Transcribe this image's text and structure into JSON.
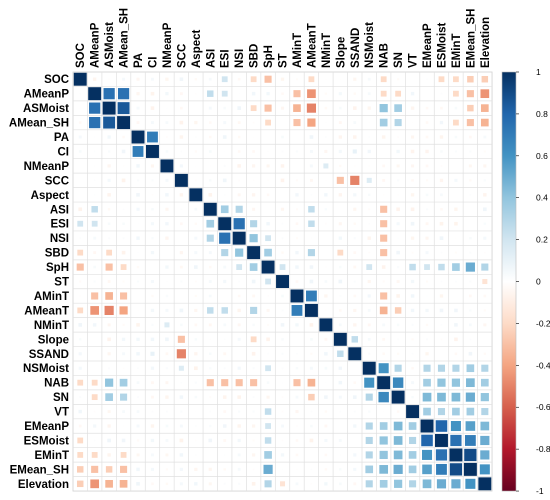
{
  "chart_data": {
    "type": "heatmap",
    "subtype": "correlation-matrix",
    "glyph": "square",
    "variables": [
      "SOC",
      "AMeanP",
      "ASMoist",
      "AMean_SH",
      "PA",
      "CI",
      "NMeanP",
      "SCC",
      "Aspect",
      "ASI",
      "ESI",
      "NSI",
      "SBD",
      "SpH",
      "ST",
      "AMinT",
      "AMeanT",
      "NMinT",
      "Slope",
      "SSAND",
      "NSMoist",
      "NAB",
      "SN",
      "VT",
      "EMeanP",
      "ESMoist",
      "EMinT",
      "EMean_SH",
      "Elevation"
    ],
    "correlations": [
      {
        "r": "AMeanP",
        "c": "ASMoist",
        "v": 0.75
      },
      {
        "r": "AMeanP",
        "c": "AMean_SH",
        "v": 0.75
      },
      {
        "r": "ASMoist",
        "c": "AMean_SH",
        "v": 0.85
      },
      {
        "r": "PA",
        "c": "CI",
        "v": 0.7
      },
      {
        "r": "SCC",
        "c": "Slope",
        "v": -0.3
      },
      {
        "r": "SCC",
        "c": "SSAND",
        "v": -0.5
      },
      {
        "r": "ASI",
        "c": "ESI",
        "v": 0.35
      },
      {
        "r": "ASI",
        "c": "NSI",
        "v": 0.3
      },
      {
        "r": "ESI",
        "c": "NSI",
        "v": 0.75
      },
      {
        "r": "ESI",
        "c": "SBD",
        "v": 0.3
      },
      {
        "r": "NSI",
        "c": "SBD",
        "v": 0.4
      },
      {
        "r": "SBD",
        "c": "SpH",
        "v": 0.35
      },
      {
        "r": "AMinT",
        "c": "AMeanT",
        "v": 0.7
      },
      {
        "r": "NSMoist",
        "c": "NAB",
        "v": 0.6
      },
      {
        "r": "NAB",
        "c": "SN",
        "v": 0.65
      },
      {
        "r": "EMeanP",
        "c": "ESMoist",
        "v": 0.8
      },
      {
        "r": "EMeanP",
        "c": "EMinT",
        "v": 0.6
      },
      {
        "r": "EMeanP",
        "c": "EMean_SH",
        "v": 0.55
      },
      {
        "r": "ESMoist",
        "c": "EMinT",
        "v": 0.75
      },
      {
        "r": "ESMoist",
        "c": "EMean_SH",
        "v": 0.7
      },
      {
        "r": "EMinT",
        "c": "EMean_SH",
        "v": 0.9
      },
      {
        "r": "EMean_SH",
        "c": "Elevation",
        "v": 0.6
      },
      {
        "r": "EMinT",
        "c": "Elevation",
        "v": 0.5
      },
      {
        "r": "ESMoist",
        "c": "Elevation",
        "v": 0.5
      },
      {
        "r": "EMeanP",
        "c": "Elevation",
        "v": 0.45
      },
      {
        "r": "SN",
        "c": "EMeanP",
        "v": 0.45
      },
      {
        "r": "SN",
        "c": "ESMoist",
        "v": 0.45
      },
      {
        "r": "SN",
        "c": "EMinT",
        "v": 0.45
      },
      {
        "r": "SN",
        "c": "EMean_SH",
        "v": 0.5
      },
      {
        "r": "SN",
        "c": "Elevation",
        "v": 0.4
      },
      {
        "r": "NAB",
        "c": "EMeanP",
        "v": 0.35
      },
      {
        "r": "NAB",
        "c": "ESMoist",
        "v": 0.4
      },
      {
        "r": "NAB",
        "c": "EMinT",
        "v": 0.4
      },
      {
        "r": "NAB",
        "c": "EMean_SH",
        "v": 0.45
      },
      {
        "r": "NAB",
        "c": "Elevation",
        "v": 0.35
      },
      {
        "r": "VT",
        "c": "EMeanP",
        "v": 0.35
      },
      {
        "r": "VT",
        "c": "ESMoist",
        "v": 0.3
      },
      {
        "r": "VT",
        "c": "EMinT",
        "v": 0.35
      },
      {
        "r": "VT",
        "c": "EMean_SH",
        "v": 0.35
      },
      {
        "r": "VT",
        "c": "Elevation",
        "v": 0.3
      },
      {
        "r": "NSMoist",
        "c": "SN",
        "v": 0.3
      },
      {
        "r": "NSMoist",
        "c": "EMeanP",
        "v": 0.3
      },
      {
        "r": "NSMoist",
        "c": "ESMoist",
        "v": 0.3
      },
      {
        "r": "NSMoist",
        "c": "EMinT",
        "v": 0.3
      },
      {
        "r": "NSMoist",
        "c": "EMean_SH",
        "v": 0.35
      },
      {
        "r": "NSMoist",
        "c": "Elevation",
        "v": 0.3
      },
      {
        "r": "SpH",
        "c": "EMean_SH",
        "v": 0.5
      },
      {
        "r": "SpH",
        "c": "EMinT",
        "v": 0.35
      },
      {
        "r": "SpH",
        "c": "Elevation",
        "v": 0.3
      },
      {
        "r": "SpH",
        "c": "ESMoist",
        "v": 0.25
      },
      {
        "r": "SpH",
        "c": "EMeanP",
        "v": 0.2
      },
      {
        "r": "SpH",
        "c": "VT",
        "v": 0.25
      },
      {
        "r": "SpH",
        "c": "NSMoist",
        "v": 0.2
      },
      {
        "r": "SpH",
        "c": "ASMoist",
        "v": -0.3
      },
      {
        "r": "SpH",
        "c": "AMean_SH",
        "v": -0.2
      },
      {
        "r": "SpH",
        "c": "ST",
        "v": 0.2
      },
      {
        "r": "AMeanP",
        "c": "AMeanT",
        "v": -0.45
      },
      {
        "r": "AMeanP",
        "c": "Elevation",
        "v": -0.45
      },
      {
        "r": "AMeanP",
        "c": "AMinT",
        "v": -0.3
      },
      {
        "r": "AMeanP",
        "c": "NAB",
        "v": -0.2
      },
      {
        "r": "AMeanP",
        "c": "SN",
        "v": -0.2
      },
      {
        "r": "AMeanP",
        "c": "EMean_SH",
        "v": -0.3
      },
      {
        "r": "AMeanP",
        "c": "EMinT",
        "v": -0.2
      },
      {
        "r": "AMeanP",
        "c": "ASI",
        "v": 0.25
      },
      {
        "r": "AMeanP",
        "c": "ESI",
        "v": 0.2
      },
      {
        "r": "ASMoist",
        "c": "AMeanT",
        "v": -0.5
      },
      {
        "r": "ASMoist",
        "c": "Elevation",
        "v": -0.35
      },
      {
        "r": "ASMoist",
        "c": "AMinT",
        "v": -0.35
      },
      {
        "r": "ASMoist",
        "c": "NAB",
        "v": 0.4
      },
      {
        "r": "ASMoist",
        "c": "SN",
        "v": 0.35
      },
      {
        "r": "ASMoist",
        "c": "EMean_SH",
        "v": -0.25
      },
      {
        "r": "ASMoist",
        "c": "SBD",
        "v": -0.2
      },
      {
        "r": "AMean_SH",
        "c": "AMeanT",
        "v": -0.4
      },
      {
        "r": "AMean_SH",
        "c": "Elevation",
        "v": -0.35
      },
      {
        "r": "AMean_SH",
        "c": "AMinT",
        "v": -0.3
      },
      {
        "r": "AMean_SH",
        "c": "NAB",
        "v": 0.35
      },
      {
        "r": "AMean_SH",
        "c": "SN",
        "v": 0.3
      },
      {
        "r": "AMean_SH",
        "c": "EMean_SH",
        "v": -0.3
      },
      {
        "r": "AMean_SH",
        "c": "EMinT",
        "v": -0.2
      },
      {
        "r": "ASI",
        "c": "NAB",
        "v": -0.3
      },
      {
        "r": "ESI",
        "c": "NAB",
        "v": -0.3
      },
      {
        "r": "NSI",
        "c": "NAB",
        "v": -0.3
      },
      {
        "r": "SBD",
        "c": "NAB",
        "v": -0.3
      },
      {
        "r": "ASI",
        "c": "AMeanT",
        "v": 0.25
      },
      {
        "r": "ESI",
        "c": "AMeanT",
        "v": 0.25
      },
      {
        "r": "SBD",
        "c": "AMeanT",
        "v": 0.3
      },
      {
        "r": "SBD",
        "c": "Slope",
        "v": -0.2
      },
      {
        "r": "NSI",
        "c": "SpH",
        "v": 0.2
      },
      {
        "r": "AMinT",
        "c": "NAB",
        "v": -0.3
      },
      {
        "r": "AMeanT",
        "c": "NAB",
        "v": -0.35
      },
      {
        "r": "AMeanT",
        "c": "SN",
        "v": -0.25
      },
      {
        "r": "SOC",
        "c": "SpH",
        "v": -0.3
      },
      {
        "r": "SOC",
        "c": "ESI",
        "v": 0.2
      },
      {
        "r": "SOC",
        "c": "EMean_SH",
        "v": -0.25
      },
      {
        "r": "SOC",
        "c": "Elevation",
        "v": -0.25
      },
      {
        "r": "SOC",
        "c": "NAB",
        "v": -0.2
      },
      {
        "r": "SOC",
        "c": "EMinT",
        "v": -0.2
      },
      {
        "r": "SOC",
        "c": "ESMoist",
        "v": -0.2
      },
      {
        "r": "SOC",
        "c": "SBD",
        "v": -0.2
      },
      {
        "r": "SOC",
        "c": "AMeanT",
        "v": -0.2
      },
      {
        "r": "SSAND",
        "c": "Slope",
        "v": 0.25
      },
      {
        "r": "SCC",
        "c": "NSMoist",
        "v": 0.15
      },
      {
        "r": "NMinT",
        "c": "NMeanP",
        "v": 0.15
      },
      {
        "r": "ST",
        "c": "Elevation",
        "v": -0.15
      },
      {
        "r": "CI",
        "c": "SSAND",
        "v": 0.1
      }
    ],
    "colorbar": {
      "ticks": [
        1,
        0.8,
        0.6,
        0.4,
        0.2,
        0,
        -0.2,
        -0.4,
        -0.6,
        -0.8,
        -1
      ],
      "colors": [
        "#053061",
        "#2166ac",
        "#4393c3",
        "#92c5de",
        "#d1e5f0",
        "#ffffff",
        "#fddbc7",
        "#f4a582",
        "#d6604d",
        "#b2182b",
        "#67001f"
      ]
    }
  }
}
